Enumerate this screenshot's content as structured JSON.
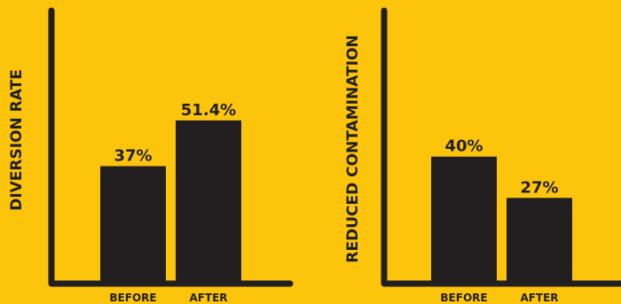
{
  "colors": {
    "background": "#FCC50B",
    "bars": "#231F20",
    "axes": "#231F20",
    "text": "#231F20"
  },
  "chart_data": [
    {
      "type": "bar",
      "title": "",
      "xlabel": "",
      "ylabel": "DIVERSION RATE",
      "categories": [
        "BEFORE",
        "AFTER"
      ],
      "values": [
        37,
        51.4
      ],
      "value_labels": [
        "37%",
        "51.4%"
      ],
      "ylim": [
        0,
        70
      ],
      "grid": false
    },
    {
      "type": "bar",
      "title": "",
      "xlabel": "",
      "ylabel": "REDUCED CONTAMINATION",
      "categories": [
        "BEFORE",
        "AFTER"
      ],
      "values": [
        40,
        27
      ],
      "value_labels": [
        "40%",
        "27%"
      ],
      "ylim": [
        0,
        70
      ],
      "grid": false
    }
  ]
}
